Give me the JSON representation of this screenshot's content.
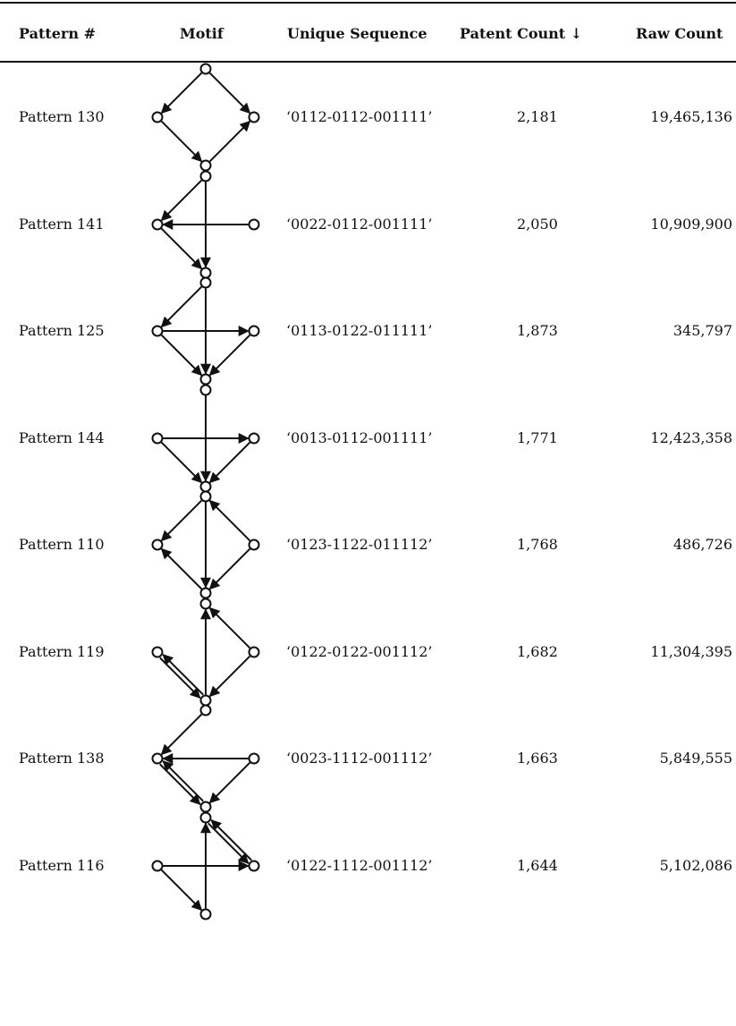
{
  "headers": {
    "pattern": "Pattern #",
    "motif": "Motif",
    "sequence": "Unique Sequence",
    "patent_count": "Patent Count ↓",
    "raw_count": "Raw Count"
  },
  "rows": [
    {
      "name": "Pattern 130",
      "sequence": "‘0112-0112-001111’",
      "patent_count": "2,181",
      "raw_count": "19,465,136",
      "edges": [
        [
          "T",
          "L"
        ],
        [
          "T",
          "R"
        ],
        [
          "L",
          "B"
        ],
        [
          "B",
          "R"
        ]
      ]
    },
    {
      "name": "Pattern 141",
      "sequence": "‘0022-0112-001111’",
      "patent_count": "2,050",
      "raw_count": "10,909,900",
      "edges": [
        [
          "T",
          "L"
        ],
        [
          "T",
          "B"
        ],
        [
          "R",
          "L"
        ],
        [
          "L",
          "B"
        ]
      ]
    },
    {
      "name": "Pattern 125",
      "sequence": "‘0113-0122-011111’",
      "patent_count": "1,873",
      "raw_count": "345,797",
      "edges": [
        [
          "T",
          "L"
        ],
        [
          "T",
          "B"
        ],
        [
          "L",
          "R"
        ],
        [
          "L",
          "B"
        ],
        [
          "R",
          "B"
        ]
      ]
    },
    {
      "name": "Pattern 144",
      "sequence": "‘0013-0112-001111’",
      "patent_count": "1,771",
      "raw_count": "12,423,358",
      "edges": [
        [
          "T",
          "B"
        ],
        [
          "L",
          "R"
        ],
        [
          "L",
          "B"
        ],
        [
          "R",
          "B"
        ]
      ]
    },
    {
      "name": "Pattern 110",
      "sequence": "‘0123-1122-011112’",
      "patent_count": "1,768",
      "raw_count": "486,726",
      "edges": [
        [
          "T",
          "L"
        ],
        [
          "T",
          "B"
        ],
        [
          "R",
          "T"
        ],
        [
          "B",
          "L"
        ],
        [
          "R",
          "B"
        ]
      ]
    },
    {
      "name": "Pattern 119",
      "sequence": "‘0122-0122-001112’",
      "patent_count": "1,682",
      "raw_count": "11,304,395",
      "edges": [
        [
          "B",
          "T"
        ],
        [
          "R",
          "T"
        ],
        [
          "B",
          "L"
        ],
        [
          "L",
          "B"
        ],
        [
          "R",
          "B"
        ]
      ]
    },
    {
      "name": "Pattern 138",
      "sequence": "‘0023-1112-001112’",
      "patent_count": "1,663",
      "raw_count": "5,849,555",
      "edges": [
        [
          "T",
          "L"
        ],
        [
          "R",
          "L"
        ],
        [
          "B",
          "L"
        ],
        [
          "L",
          "B"
        ],
        [
          "R",
          "B"
        ]
      ]
    },
    {
      "name": "Pattern 116",
      "sequence": "‘0122-1112-001112’",
      "patent_count": "1,644",
      "raw_count": "5,102,086",
      "edges": [
        [
          "B",
          "T"
        ],
        [
          "L",
          "R"
        ],
        [
          "T",
          "R"
        ],
        [
          "R",
          "T"
        ],
        [
          "L",
          "B"
        ]
      ]
    }
  ]
}
